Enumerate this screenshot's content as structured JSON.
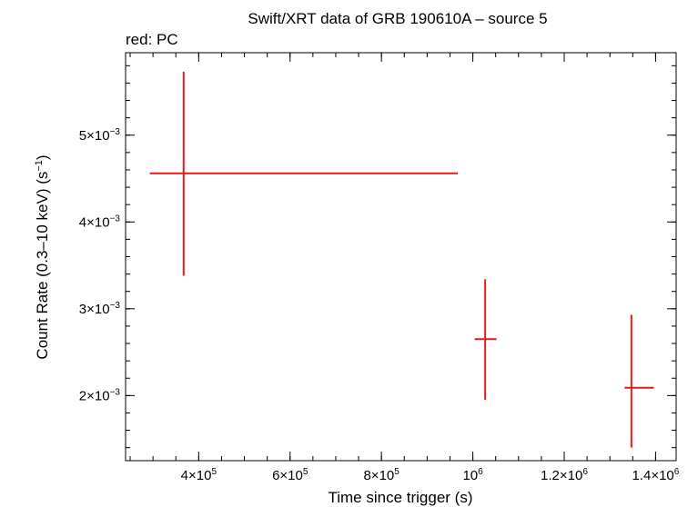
{
  "chart_data": {
    "type": "scatter",
    "title": "Swift/XRT data of GRB 190610A – source 5",
    "subtitle": "red: PC",
    "xlabel": "Time since trigger (s)",
    "ylabel": "Count Rate (0.3–10 keV) (s",
    "ylabel_sup": "−1",
    "ylabel_end": ")",
    "xlim": [
      240000,
      1445000
    ],
    "ylim": [
      0.00125,
      0.00595
    ],
    "x_ticks": [
      {
        "value": 400000,
        "mant": "4×10",
        "exp": "5"
      },
      {
        "value": 600000,
        "mant": "6×10",
        "exp": "5"
      },
      {
        "value": 800000,
        "mant": "8×10",
        "exp": "5"
      },
      {
        "value": 1000000,
        "mant": "10",
        "exp": "6"
      },
      {
        "value": 1200000,
        "mant": "1.2×10",
        "exp": "6"
      },
      {
        "value": 1400000,
        "mant": "1.4×10",
        "exp": "6"
      }
    ],
    "x_minor_step": 50000,
    "y_ticks": [
      {
        "value": 0.002,
        "mant": "2×10",
        "exp": "−3"
      },
      {
        "value": 0.003,
        "mant": "3×10",
        "exp": "−3"
      },
      {
        "value": 0.004,
        "mant": "4×10",
        "exp": "−3"
      },
      {
        "value": 0.005,
        "mant": "5×10",
        "exp": "−3"
      }
    ],
    "y_minor_step": 0.0002,
    "series": [
      {
        "name": "PC",
        "color": "#e41a1c",
        "points": [
          {
            "x": 367000,
            "x_lo": 293000,
            "x_hi": 967000,
            "y": 0.00456,
            "y_lo": 0.00338,
            "y_hi": 0.00573
          },
          {
            "x": 1027000,
            "x_lo": 1004000,
            "x_hi": 1052000,
            "y": 0.00265,
            "y_lo": 0.00195,
            "y_hi": 0.00334
          },
          {
            "x": 1347000,
            "x_lo": 1332000,
            "x_hi": 1396000,
            "y": 0.00209,
            "y_lo": 0.0014,
            "y_hi": 0.00293
          }
        ]
      }
    ],
    "grid": false,
    "legend": "none"
  }
}
